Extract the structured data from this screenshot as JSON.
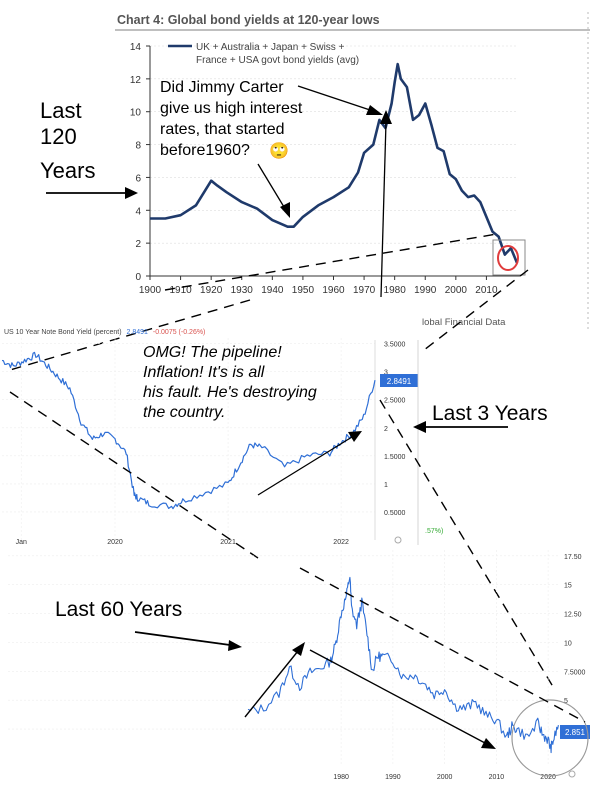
{
  "chart_data": [
    {
      "type": "line",
      "title": "Chart 4: Global bond yields at 120-year lows",
      "legend": "UK + Australia + Japan + Swiss + France + USA govt bond yields (avg)",
      "legend_line1": "UK + Australia + Japan + Swiss +",
      "legend_line2": "France + USA govt bond yields (avg)",
      "legend_position": "top-center",
      "source_fragment": "lobal Financial Data",
      "xlim": [
        1900,
        2020
      ],
      "ylim": [
        0,
        14
      ],
      "x_ticks": [
        1900,
        1910,
        1920,
        1930,
        1940,
        1950,
        1960,
        1970,
        1980,
        1990,
        2000,
        2010
      ],
      "y_ticks": [
        0,
        2,
        4,
        6,
        8,
        10,
        12,
        14
      ],
      "grid": true,
      "series": [
        {
          "color": "#1f3a6b",
          "x": [
            1900,
            1905,
            1910,
            1915,
            1918,
            1920,
            1922,
            1925,
            1930,
            1935,
            1940,
            1945,
            1947,
            1950,
            1955,
            1960,
            1965,
            1968,
            1970,
            1973,
            1975,
            1977,
            1979,
            1980,
            1981,
            1982,
            1984,
            1986,
            1988,
            1990,
            1992,
            1994,
            1996,
            1998,
            2000,
            2002,
            2004,
            2006,
            2008,
            2010,
            2012,
            2014,
            2016,
            2018,
            2020
          ],
          "y": [
            3.5,
            3.5,
            3.7,
            4.3,
            5.2,
            5.8,
            5.5,
            5.1,
            4.5,
            4.1,
            3.4,
            3.0,
            3.0,
            3.6,
            4.3,
            4.8,
            5.4,
            6.3,
            7.5,
            8.0,
            9.5,
            9.0,
            10.5,
            11.8,
            12.9,
            12.0,
            11.5,
            9.5,
            9.8,
            10.5,
            9.2,
            7.8,
            7.6,
            6.2,
            5.9,
            5.2,
            4.8,
            4.9,
            4.5,
            3.6,
            2.7,
            2.4,
            1.3,
            1.7,
            0.8
          ]
        }
      ]
    },
    {
      "type": "line",
      "title": "US 10 Year Note Bond Yield (percent)",
      "header_value": "2.8491",
      "header_change": "-0.0075 (-0.26%)",
      "last_value": "2.8491",
      "x_ticks": [
        "Jan",
        "2020",
        "2021",
        "2022"
      ],
      "y_ticks": [
        "3.5000",
        "3",
        "2.5000",
        "2",
        "1.5000",
        "1",
        "0.5000"
      ],
      "ylim": [
        0,
        3.6
      ],
      "fragment": ".57%)",
      "series": [
        {
          "color": "#2f6fd6",
          "x": [
            2019.0,
            2019.1,
            2019.2,
            2019.3,
            2019.4,
            2019.5,
            2019.6,
            2019.7,
            2019.8,
            2019.9,
            2020.0,
            2020.1,
            2020.17,
            2020.2,
            2020.3,
            2020.5,
            2020.6,
            2020.8,
            2021.0,
            2021.1,
            2021.2,
            2021.3,
            2021.5,
            2021.7,
            2021.9,
            2022.0,
            2022.1,
            2022.2,
            2022.3
          ],
          "y": [
            3.2,
            3.1,
            3.2,
            3.3,
            3.1,
            2.9,
            2.7,
            2.1,
            1.8,
            1.9,
            1.8,
            1.55,
            0.8,
            0.75,
            0.65,
            0.6,
            0.7,
            0.85,
            1.0,
            1.35,
            1.7,
            1.65,
            1.3,
            1.5,
            1.55,
            1.75,
            1.9,
            2.2,
            2.85
          ]
        }
      ]
    },
    {
      "type": "line",
      "x_ticks": [
        "1980",
        "1990",
        "2000",
        "2010",
        "2020"
      ],
      "y_ticks": [
        "17.50",
        "15",
        "12.50",
        "10",
        "7.5000",
        "5",
        "2.5000"
      ],
      "ylim": [
        0,
        18
      ],
      "last_value": "2.851",
      "series": [
        {
          "color": "#2f6fd6",
          "x": [
            1962,
            1965,
            1968,
            1970,
            1972,
            1974,
            1976,
            1978,
            1979,
            1980,
            1981,
            1981.7,
            1982,
            1983,
            1984,
            1985,
            1986,
            1987,
            1988,
            1990,
            1992,
            1994,
            1996,
            1998,
            2000,
            2002,
            2004,
            2006,
            2008,
            2010,
            2012,
            2013,
            2014,
            2016,
            2018,
            2019,
            2020,
            2020.5,
            2021,
            2022
          ],
          "y": [
            4.0,
            4.3,
            5.6,
            7.8,
            6.2,
            7.4,
            7.8,
            8.4,
            10.0,
            12.5,
            14.0,
            15.8,
            13.0,
            11.5,
            13.5,
            10.8,
            7.5,
            8.8,
            8.8,
            8.5,
            7.0,
            7.2,
            6.5,
            5.5,
            6.0,
            4.5,
            4.3,
            4.8,
            3.7,
            3.3,
            1.8,
            2.7,
            2.5,
            1.8,
            3.0,
            2.0,
            1.6,
            0.8,
            1.5,
            2.85
          ]
        }
      ]
    }
  ],
  "annotations": {
    "carter": [
      "Did Jimmy Carter",
      "give us high interest",
      "rates, that started",
      "before1960?"
    ],
    "emoji": "🙄",
    "omg": [
      "OMG! The pipeline!",
      "Inflation! It's is all",
      "his fault. He's destroying",
      "the country."
    ],
    "last120": [
      "Last",
      "120",
      "Years"
    ],
    "last3": "Last 3 Years",
    "last60": "Last 60 Years"
  },
  "colors": {
    "navy_line": "#1f3a6b",
    "blue_line": "#2f6fd6",
    "badge": "#2f6fd6",
    "negative": "#d9534f",
    "circle": "#e03c3c"
  }
}
